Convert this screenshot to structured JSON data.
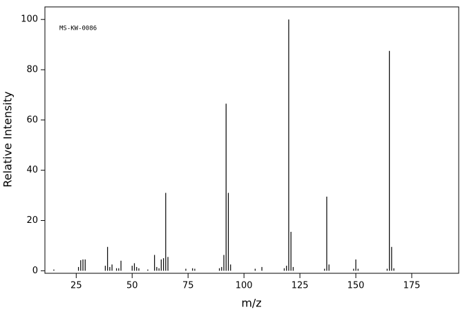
{
  "chart_data": {
    "type": "stem",
    "title": "MS-KW-0086",
    "xlabel": "m/z",
    "ylabel": "Relative Intensity",
    "x": [
      15,
      26,
      27,
      28,
      29,
      38,
      39,
      40,
      41,
      43,
      44,
      45,
      50,
      51,
      52,
      53,
      57,
      60,
      61,
      62,
      63,
      64,
      65,
      66,
      74,
      77,
      78,
      89,
      90,
      91,
      92,
      93,
      94,
      105,
      108,
      118,
      119,
      120,
      121,
      122,
      136,
      137,
      138,
      149,
      150,
      151,
      164,
      165,
      166,
      167
    ],
    "values": [
      0.5,
      1.5,
      4.2,
      4.5,
      4.5,
      2,
      9.5,
      1.5,
      2.5,
      1,
      1,
      4,
      2,
      3,
      1.5,
      1,
      0.5,
      6.3,
      1.5,
      1,
      4.5,
      5,
      31,
      5.5,
      0.8,
      1,
      0.8,
      1,
      1.5,
      6.3,
      66.5,
      31,
      2.5,
      0.8,
      1.5,
      1,
      2,
      100,
      15.5,
      1.5,
      0.8,
      29.5,
      2.5,
      0.8,
      4.5,
      0.8,
      0.8,
      87.5,
      9.5,
      1
    ],
    "color": "#000000",
    "xlim": [
      11,
      196
    ],
    "xticks": [
      25,
      50,
      75,
      100,
      125,
      150,
      175
    ],
    "ylim": [
      -1,
      105
    ],
    "yticks": [
      0,
      20,
      40,
      60,
      80,
      100
    ]
  }
}
